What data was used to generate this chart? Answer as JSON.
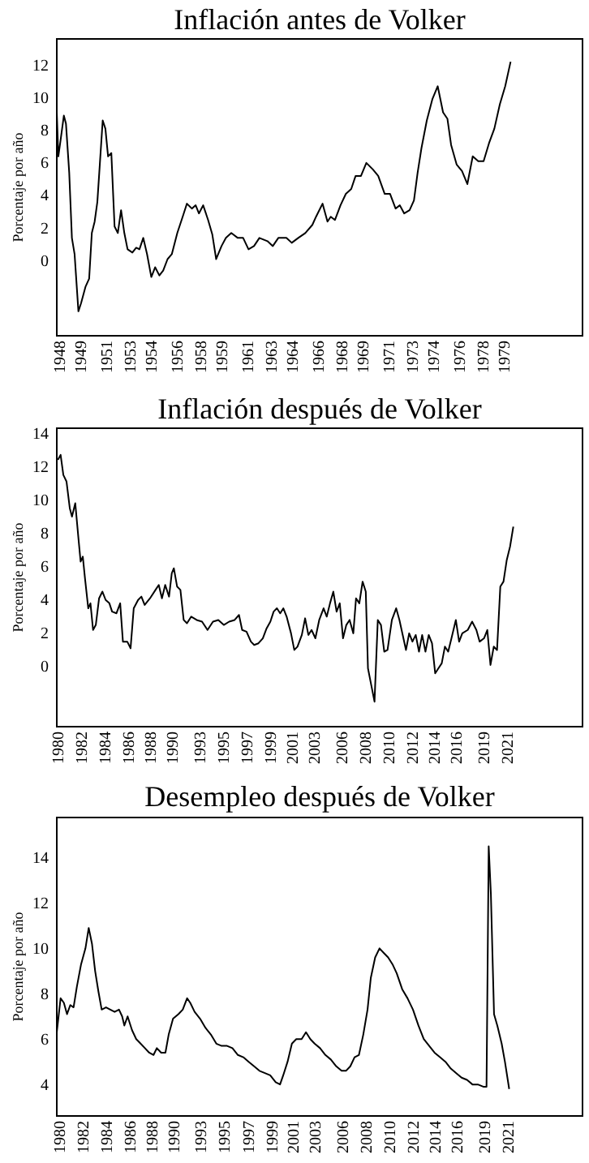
{
  "chart_data": [
    {
      "type": "line",
      "title": "Inflación antes de Volker",
      "ylabel": "Porcentaje por año",
      "color": "#000000",
      "grid": false,
      "xlim": [
        1947.81,
        1985.02
      ],
      "ylim": [
        -4.6,
        13.6
      ],
      "yticks": [
        0,
        2,
        4,
        6,
        8,
        10,
        12
      ],
      "xticks": [
        1948,
        {
          "value": 1949.49,
          "label": "1949"
        },
        {
          "value": 1951.333,
          "label": "1951"
        },
        1953,
        {
          "value": 1954.49,
          "label": "1954"
        },
        {
          "value": 1956.333,
          "label": "1956"
        },
        1958,
        {
          "value": 1959.49,
          "label": "1959"
        },
        {
          "value": 1961.333,
          "label": "1961"
        },
        1963,
        {
          "value": 1964.49,
          "label": "1964"
        },
        {
          "value": 1966.333,
          "label": "1966"
        },
        1968,
        {
          "value": 1969.49,
          "label": "1969"
        },
        {
          "value": 1971.333,
          "label": "1971"
        },
        1973,
        {
          "value": 1974.49,
          "label": "1974"
        },
        {
          "value": 1976.333,
          "label": "1976"
        },
        1978,
        {
          "value": 1979.49,
          "label": "1979"
        }
      ],
      "x": [
        1947.81,
        1947.92,
        1948.08,
        1948.31,
        1948.46,
        1948.69,
        1948.88,
        1949.07,
        1949.34,
        1949.53,
        1949.84,
        1950.1,
        1950.29,
        1950.49,
        1950.68,
        1950.87,
        1951.06,
        1951.25,
        1951.44,
        1951.67,
        1951.9,
        1952.13,
        1952.36,
        1952.59,
        1952.82,
        1953.16,
        1953.43,
        1953.66,
        1953.93,
        1954.2,
        1954.5,
        1954.77,
        1955.07,
        1955.34,
        1955.65,
        1955.95,
        1956.34,
        1956.72,
        1957.02,
        1957.37,
        1957.64,
        1957.87,
        1958.17,
        1958.52,
        1958.82,
        1959.09,
        1959.47,
        1959.78,
        1960.16,
        1960.62,
        1961.0,
        1961.38,
        1961.77,
        1962.15,
        1962.72,
        1963.1,
        1963.49,
        1964.06,
        1964.44,
        1964.9,
        1965.4,
        1965.9,
        1966.16,
        1966.62,
        1966.97,
        1967.2,
        1967.5,
        1967.89,
        1968.27,
        1968.65,
        1968.96,
        1969.34,
        1969.72,
        1970.18,
        1970.56,
        1971.02,
        1971.4,
        1971.79,
        1972.09,
        1972.4,
        1972.78,
        1973.09,
        1973.35,
        1973.62,
        1974.0,
        1974.39,
        1974.77,
        1975.15,
        1975.46,
        1975.72,
        1976.11,
        1976.49,
        1976.87,
        1977.25,
        1977.64,
        1978.02,
        1978.4,
        1978.78,
        1979.17,
        1979.55,
        1979.93
      ],
      "values": [
        9.1,
        6.4,
        7.4,
        8.9,
        8.4,
        5.4,
        1.4,
        0.4,
        -3.1,
        -2.6,
        -1.6,
        -1.1,
        1.7,
        2.4,
        3.6,
        6.1,
        8.6,
        8.1,
        6.4,
        6.6,
        2.1,
        1.7,
        3.1,
        1.7,
        0.7,
        0.5,
        0.8,
        0.7,
        1.4,
        0.4,
        -1.0,
        -0.4,
        -0.9,
        -0.6,
        0.1,
        0.4,
        1.7,
        2.7,
        3.5,
        3.2,
        3.4,
        2.9,
        3.4,
        2.5,
        1.6,
        0.1,
        0.9,
        1.4,
        1.7,
        1.4,
        1.4,
        0.7,
        0.9,
        1.4,
        1.2,
        0.9,
        1.4,
        1.4,
        1.1,
        1.4,
        1.7,
        2.2,
        2.7,
        3.5,
        2.4,
        2.7,
        2.5,
        3.4,
        4.1,
        4.4,
        5.2,
        5.2,
        6.0,
        5.6,
        5.2,
        4.1,
        4.1,
        3.2,
        3.4,
        2.9,
        3.1,
        3.7,
        5.4,
        6.9,
        8.6,
        9.9,
        10.7,
        9.1,
        8.7,
        7.1,
        5.9,
        5.5,
        4.7,
        6.4,
        6.1,
        6.1,
        7.2,
        8.1,
        9.6,
        10.7,
        12.2
      ]
    },
    {
      "type": "line",
      "title": "Inflación después de Volker",
      "ylabel": "Porcentaje por año",
      "color": "#000000",
      "grid": false,
      "xlim": [
        1979.9,
        2028.0
      ],
      "ylim": [
        -3.6,
        14.3
      ],
      "yticks": [
        0,
        2,
        4,
        6,
        8,
        10,
        12,
        14
      ],
      "xticks": [
        1980,
        {
          "value": 1982.167,
          "label": "1982"
        },
        {
          "value": 1984.333,
          "label": "1984"
        },
        {
          "value": 1986.49,
          "label": "1986"
        },
        {
          "value": 1988.49,
          "label": "1988"
        },
        {
          "value": 1990.49,
          "label": "1990"
        },
        1993,
        {
          "value": 1995.167,
          "label": "1995"
        },
        {
          "value": 1997.333,
          "label": "1997"
        },
        {
          "value": 1999.49,
          "label": "1999"
        },
        {
          "value": 2001.49,
          "label": "2001"
        },
        {
          "value": 2003.49,
          "label": "2003"
        },
        2006,
        {
          "value": 2008.167,
          "label": "2008"
        },
        {
          "value": 2010.333,
          "label": "2010"
        },
        {
          "value": 2012.49,
          "label": "2012"
        },
        {
          "value": 2014.49,
          "label": "2014"
        },
        {
          "value": 2016.49,
          "label": "2016"
        },
        2019,
        {
          "value": 2021.167,
          "label": "2021"
        }
      ],
      "x": [
        1980.0,
        1980.25,
        1980.5,
        1980.79,
        1981.09,
        1981.29,
        1981.59,
        1981.88,
        1982.08,
        1982.28,
        1982.48,
        1982.78,
        1982.98,
        1983.22,
        1983.47,
        1983.77,
        1984.07,
        1984.37,
        1984.71,
        1984.96,
        1985.36,
        1985.7,
        1985.95,
        1986.35,
        1986.65,
        1986.94,
        1987.34,
        1987.64,
        1987.94,
        1988.43,
        1988.93,
        1989.23,
        1989.52,
        1989.82,
        1990.17,
        1990.42,
        1990.61,
        1990.91,
        1991.21,
        1991.51,
        1991.81,
        1992.2,
        1992.7,
        1993.19,
        1993.69,
        1994.19,
        1994.68,
        1995.18,
        1995.67,
        1996.17,
        1996.57,
        1996.86,
        1997.26,
        1997.66,
        1997.96,
        1998.35,
        1998.75,
        1999.1,
        1999.44,
        1999.74,
        2000.04,
        2000.34,
        2000.63,
        2000.93,
        2001.33,
        2001.63,
        2001.92,
        2002.32,
        2002.62,
        2002.92,
        2003.21,
        2003.56,
        2003.91,
        2004.31,
        2004.6,
        2004.9,
        2005.2,
        2005.5,
        2005.79,
        2006.09,
        2006.39,
        2006.69,
        2007.03,
        2007.28,
        2007.58,
        2007.88,
        2008.17,
        2008.37,
        2008.67,
        2008.97,
        2009.27,
        2009.56,
        2009.86,
        2010.16,
        2010.56,
        2010.95,
        2011.25,
        2011.55,
        2011.85,
        2012.14,
        2012.44,
        2012.74,
        2013.04,
        2013.33,
        2013.63,
        2013.93,
        2014.23,
        2014.52,
        2014.82,
        2015.12,
        2015.41,
        2015.71,
        2016.01,
        2016.41,
        2016.71,
        2017.0,
        2017.5,
        2017.9,
        2018.29,
        2018.59,
        2018.99,
        2019.29,
        2019.58,
        2019.88,
        2020.18,
        2020.48,
        2020.77,
        2021.07,
        2021.37,
        2021.67
      ],
      "values": [
        12.4,
        12.7,
        11.5,
        11.1,
        9.5,
        9.0,
        9.8,
        7.7,
        6.3,
        6.6,
        5.3,
        3.5,
        3.8,
        2.2,
        2.5,
        4.1,
        4.5,
        4.0,
        3.8,
        3.3,
        3.2,
        3.8,
        1.5,
        1.5,
        1.1,
        3.5,
        4.0,
        4.2,
        3.7,
        4.1,
        4.6,
        4.9,
        4.1,
        4.9,
        4.2,
        5.6,
        5.9,
        4.8,
        4.6,
        2.8,
        2.6,
        3.0,
        2.8,
        2.7,
        2.2,
        2.7,
        2.8,
        2.5,
        2.7,
        2.8,
        3.1,
        2.2,
        2.1,
        1.5,
        1.3,
        1.4,
        1.7,
        2.3,
        2.7,
        3.3,
        3.5,
        3.2,
        3.5,
        3.0,
        2.0,
        1.0,
        1.2,
        1.9,
        2.9,
        1.9,
        2.2,
        1.7,
        2.8,
        3.5,
        3.0,
        3.8,
        4.5,
        3.3,
        3.8,
        1.7,
        2.5,
        2.8,
        2.0,
        4.1,
        3.8,
        5.1,
        4.5,
        -0.1,
        -1.1,
        -2.1,
        2.8,
        2.5,
        0.9,
        1.0,
        2.8,
        3.5,
        2.8,
        1.9,
        1.0,
        2.0,
        1.5,
        1.9,
        0.9,
        1.9,
        0.9,
        1.9,
        1.4,
        -0.4,
        -0.1,
        0.2,
        1.2,
        0.9,
        1.7,
        2.8,
        1.5,
        2.0,
        2.2,
        2.7,
        2.2,
        1.5,
        1.7,
        2.2,
        0.1,
        1.2,
        1.0,
        4.8,
        5.1,
        6.4,
        7.2,
        8.4
      ]
    },
    {
      "type": "line",
      "title": "Desempleo después de Volker",
      "ylabel": "Porcentaje por año",
      "color": "#000000",
      "grid": false,
      "xlim": [
        1979.75,
        2028.0
      ],
      "ylim": [
        2.61,
        15.77
      ],
      "yticks": [
        4,
        6,
        8,
        10,
        12,
        14
      ],
      "xticks": [
        1980,
        {
          "value": 1982.167,
          "label": "1982"
        },
        {
          "value": 1984.333,
          "label": "1984"
        },
        {
          "value": 1986.49,
          "label": "1986"
        },
        {
          "value": 1988.49,
          "label": "1988"
        },
        {
          "value": 1990.49,
          "label": "1990"
        },
        1993,
        {
          "value": 1995.167,
          "label": "1995"
        },
        {
          "value": 1997.333,
          "label": "1997"
        },
        {
          "value": 1999.49,
          "label": "1999"
        },
        {
          "value": 2001.49,
          "label": "2001"
        },
        {
          "value": 2003.49,
          "label": "2003"
        },
        2006,
        {
          "value": 2008.167,
          "label": "2008"
        },
        {
          "value": 2010.333,
          "label": "2010"
        },
        {
          "value": 2012.49,
          "label": "2012"
        },
        {
          "value": 2014.49,
          "label": "2014"
        },
        {
          "value": 2016.49,
          "label": "2016"
        },
        2019,
        {
          "value": 2021.167,
          "label": "2021"
        }
      ],
      "x": [
        1979.75,
        1980.1,
        1980.4,
        1980.69,
        1980.99,
        1981.29,
        1981.59,
        1981.98,
        1982.38,
        1982.68,
        1982.98,
        1983.27,
        1983.57,
        1983.87,
        1984.27,
        1984.66,
        1985.06,
        1985.46,
        1985.75,
        1985.95,
        1986.25,
        1986.65,
        1987.04,
        1987.44,
        1987.84,
        1988.23,
        1988.63,
        1988.93,
        1989.33,
        1989.72,
        1990.02,
        1990.42,
        1990.91,
        1991.31,
        1991.71,
        1992.0,
        1992.4,
        1992.9,
        1993.39,
        1993.89,
        1994.39,
        1994.88,
        1995.38,
        1995.87,
        1996.37,
        1996.87,
        1997.36,
        1997.86,
        1998.35,
        1998.85,
        1999.34,
        1999.84,
        2000.24,
        2000.53,
        2000.93,
        2001.33,
        2001.73,
        2002.22,
        2002.62,
        2003.02,
        2003.41,
        2003.91,
        2004.4,
        2004.9,
        2005.4,
        2005.89,
        2006.29,
        2006.69,
        2007.08,
        2007.48,
        2007.88,
        2008.27,
        2008.57,
        2008.97,
        2009.37,
        2009.76,
        2010.16,
        2010.56,
        2010.95,
        2011.45,
        2011.94,
        2012.44,
        2012.94,
        2013.43,
        2013.93,
        2014.42,
        2014.92,
        2015.42,
        2015.91,
        2016.41,
        2016.9,
        2017.4,
        2017.9,
        2018.39,
        2018.89,
        2019.19,
        2019.39,
        2019.59,
        2019.88,
        2020.18,
        2020.58,
        2020.88,
        2021.27
      ],
      "values": [
        6.3,
        7.8,
        7.6,
        7.1,
        7.5,
        7.4,
        8.3,
        9.3,
        10.0,
        10.9,
        10.2,
        9.0,
        8.1,
        7.3,
        7.4,
        7.3,
        7.2,
        7.3,
        7.0,
        6.6,
        7.0,
        6.4,
        6.0,
        5.8,
        5.6,
        5.4,
        5.3,
        5.6,
        5.4,
        5.4,
        6.2,
        6.9,
        7.1,
        7.3,
        7.8,
        7.6,
        7.2,
        6.9,
        6.5,
        6.2,
        5.8,
        5.7,
        5.7,
        5.6,
        5.3,
        5.2,
        5.0,
        4.8,
        4.6,
        4.5,
        4.4,
        4.1,
        4.0,
        4.4,
        5.0,
        5.8,
        6.0,
        6.0,
        6.3,
        6.0,
        5.8,
        5.6,
        5.3,
        5.1,
        4.8,
        4.6,
        4.6,
        4.8,
        5.2,
        5.3,
        6.2,
        7.3,
        8.7,
        9.6,
        10.0,
        9.8,
        9.6,
        9.3,
        8.9,
        8.2,
        7.8,
        7.3,
        6.6,
        6.0,
        5.7,
        5.4,
        5.2,
        5.0,
        4.7,
        4.5,
        4.3,
        4.2,
        4.0,
        4.0,
        3.9,
        3.9,
        14.5,
        12.4,
        7.1,
        6.6,
        5.8,
        5.0,
        3.8
      ]
    }
  ]
}
